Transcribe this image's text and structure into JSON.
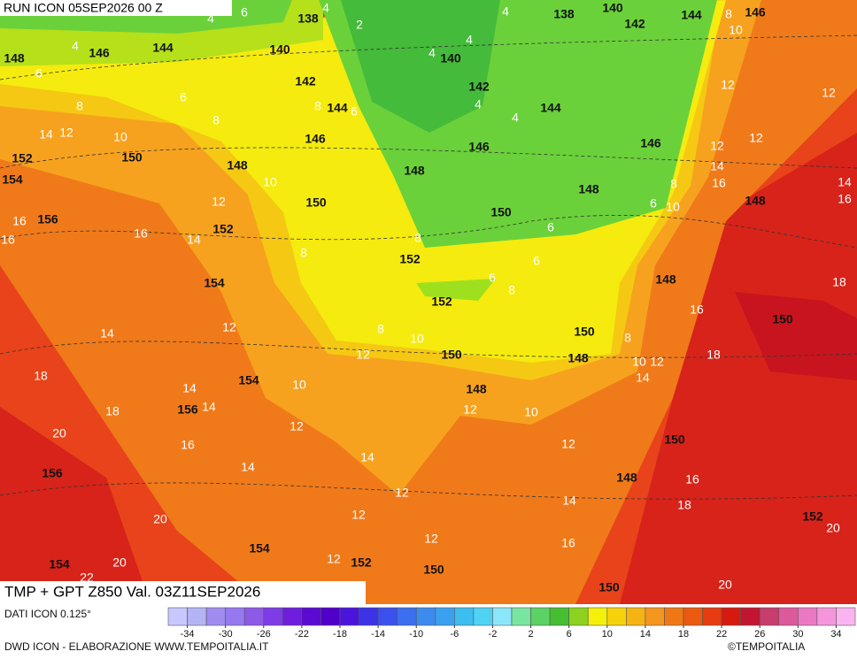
{
  "header": {
    "run": "RUN ICON 05SEP2026 00 Z",
    "product": "TMP + GPT Z850 Val. 03Z11SEP2026"
  },
  "footer": {
    "source": "DATI ICON 0.125°",
    "credit": "DWD ICON - ELABORAZIONE WWW.TEMPOITALIA.IT",
    "brand": "©TEMPOITALIA"
  },
  "colorbar": {
    "min": -36,
    "max": 36,
    "colors": [
      "#c8c8ff",
      "#b4b4f5",
      "#a08cf0",
      "#9678f0",
      "#8c5ae6",
      "#7d3ce6",
      "#6e1edc",
      "#5a0ad2",
      "#5000c8",
      "#4b14dc",
      "#3c32e6",
      "#3c50f0",
      "#3c6ef0",
      "#3c8cf0",
      "#3ca0f0",
      "#3cbef0",
      "#50d2f5",
      "#8ce6fa",
      "#78e6a0",
      "#5ad264",
      "#46be32",
      "#8cd21e",
      "#f5f00a",
      "#f5d20a",
      "#f5b414",
      "#f5961e",
      "#f07814",
      "#eb5a0f",
      "#e63c0f",
      "#d7190f",
      "#c31432",
      "#c83c6e",
      "#dc5a9b",
      "#eb78c3",
      "#f596dc",
      "#fab4f0"
    ],
    "ticks": [
      -34,
      -30,
      -26,
      -22,
      -18,
      -14,
      -10,
      -6,
      -2,
      2,
      6,
      10,
      14,
      18,
      22,
      26,
      30,
      34
    ]
  },
  "map": {
    "height_labels": [
      "138",
      "140",
      "138",
      "144",
      "146",
      "142",
      "148",
      "146",
      "144",
      "140",
      "140",
      "142",
      "142",
      "144",
      "144",
      "146",
      "146",
      "146",
      "152",
      "150",
      "148",
      "148",
      "154",
      "148",
      "148",
      "150",
      "150",
      "156",
      "152",
      "152",
      "148",
      "154",
      "152",
      "150",
      "150",
      "150",
      "148",
      "154",
      "148",
      "156",
      "150",
      "156",
      "148",
      "152",
      "154",
      "152",
      "154",
      "150",
      "150"
    ],
    "temperature_labels": [
      "4",
      "6",
      "4",
      "2",
      "4",
      "8",
      "10",
      "4",
      "6",
      "4",
      "4",
      "6",
      "8",
      "8",
      "6",
      "4",
      "4",
      "12",
      "12",
      "14",
      "12",
      "10",
      "8",
      "12",
      "12",
      "14",
      "10",
      "8",
      "16",
      "14",
      "10",
      "6",
      "16",
      "12",
      "16",
      "16",
      "16",
      "14",
      "6",
      "8",
      "8",
      "6",
      "6",
      "8",
      "18",
      "16",
      "12",
      "14",
      "8",
      "10",
      "8",
      "12",
      "10",
      "12",
      "18",
      "14",
      "18",
      "10",
      "14",
      "14",
      "18",
      "12",
      "10",
      "20",
      "12",
      "16",
      "12",
      "14",
      "14",
      "16",
      "12",
      "14",
      "18",
      "12",
      "20",
      "20",
      "12",
      "16",
      "12",
      "20",
      "22",
      "20"
    ]
  }
}
